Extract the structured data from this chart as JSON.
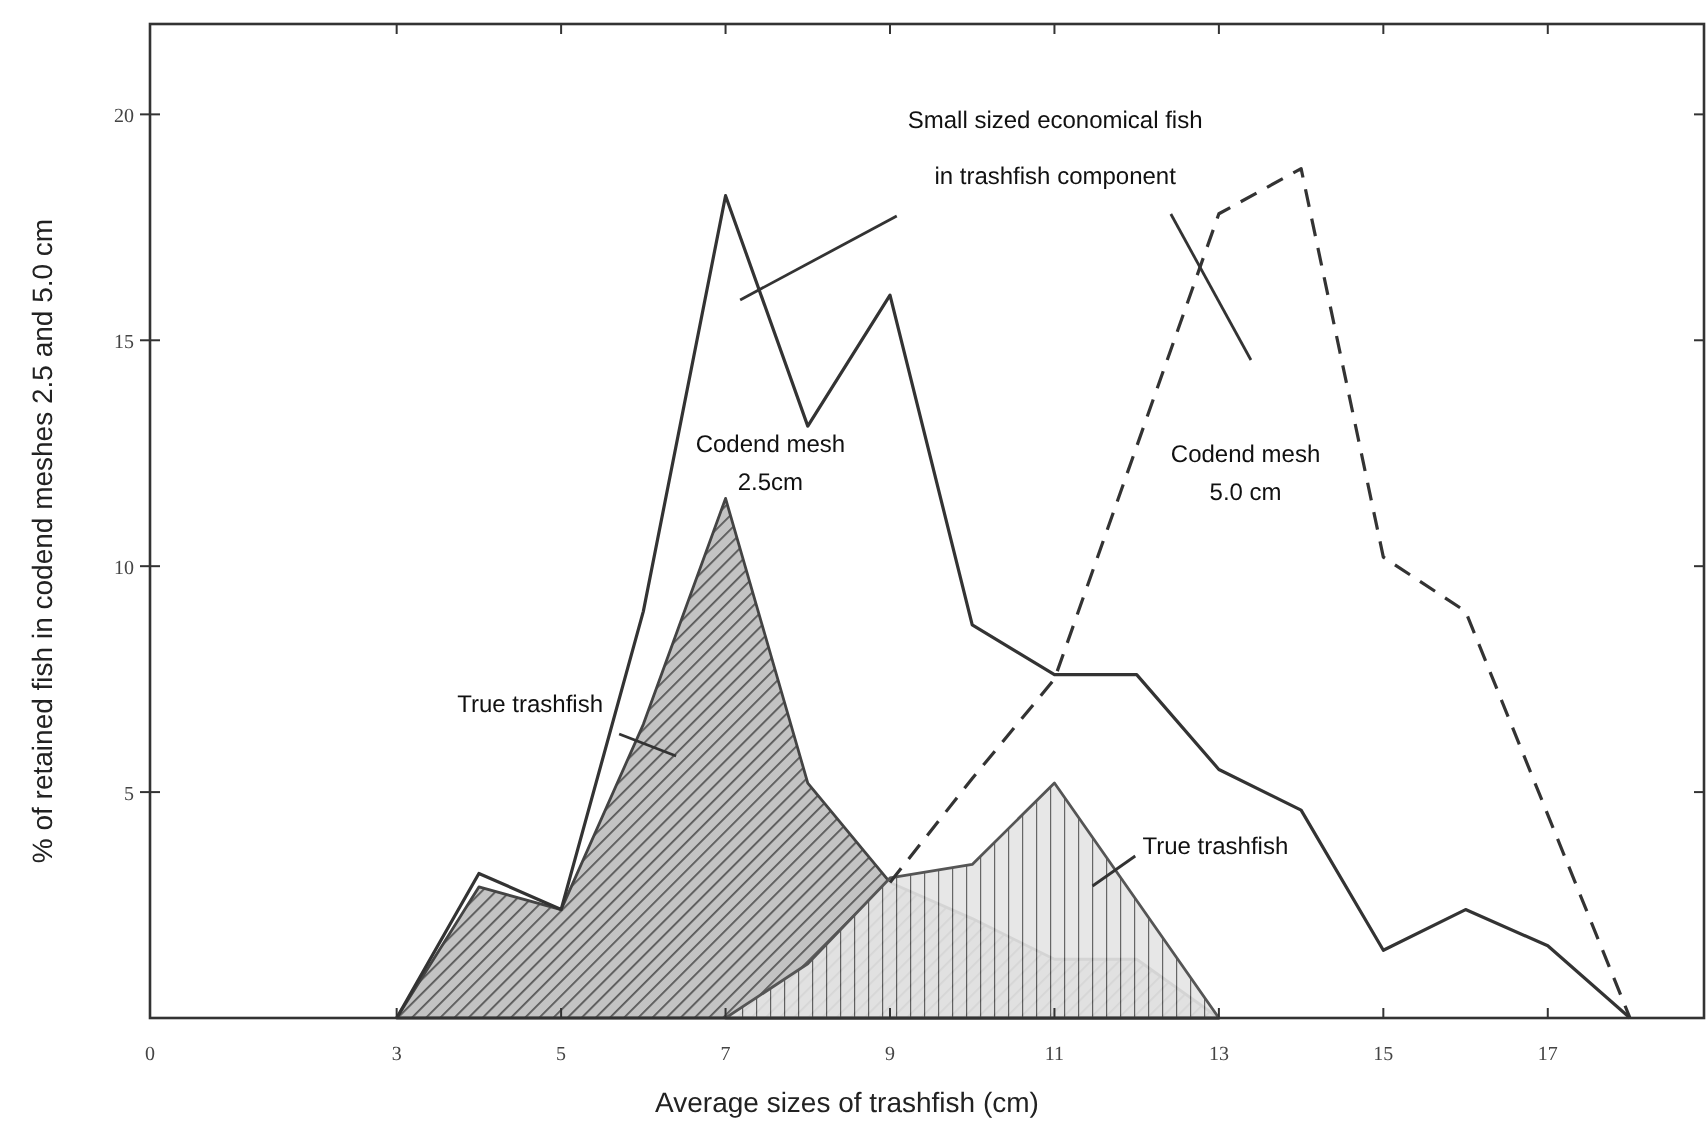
{
  "chart_data": {
    "type": "line",
    "xlabel": "Average sizes of trashfish (cm)",
    "ylabel": "% of retained fish in codend meshes 2.5 and 5.0 cm",
    "xlim": [
      0,
      18.9
    ],
    "ylim": [
      0,
      22
    ],
    "xticks": [
      0,
      3,
      5,
      7,
      9,
      11,
      13,
      15,
      17
    ],
    "yticks": [
      5,
      10,
      15,
      20
    ],
    "grid": false,
    "series": [
      {
        "type": "area",
        "color": "#444444",
        "x": [
          3,
          4,
          5,
          6,
          7,
          8,
          9,
          10,
          11,
          12,
          13
        ],
        "values": [
          0,
          2.9,
          2.4,
          6.5,
          11.5,
          5.2,
          3.0,
          2.2,
          1.3,
          1.3,
          0
        ]
      },
      {
        "type": "area",
        "color": "#555555",
        "x": [
          7,
          8,
          9,
          10,
          11,
          12,
          13
        ],
        "values": [
          0,
          1.2,
          3.1,
          3.4,
          5.2,
          2.6,
          0
        ]
      },
      {
        "color": "#333333",
        "line_style": "solid",
        "x": [
          3,
          4,
          5,
          6,
          7,
          8,
          9,
          10,
          11,
          12,
          13,
          14,
          15,
          16,
          17,
          18
        ],
        "values": [
          0,
          3.2,
          2.4,
          9,
          18.2,
          13.1,
          16.0,
          8.7,
          7.6,
          7.6,
          5.5,
          4.6,
          1.5,
          2.4,
          1.6,
          0
        ]
      },
      {
        "color": "#333333",
        "line_style": "dashed",
        "x": [
          9,
          10,
          11,
          13,
          14,
          15,
          16,
          18
        ],
        "values": [
          3.0,
          5.3,
          7.5,
          17.8,
          18.8,
          10.2,
          9.0,
          0
        ]
      }
    ],
    "annotations": [
      "Small sized economical fish\nin trashfish component",
      "Codend mesh\n2.5cm",
      "Codend mesh\n5.0 cm",
      "True trashfish",
      "True trashfish"
    ]
  }
}
